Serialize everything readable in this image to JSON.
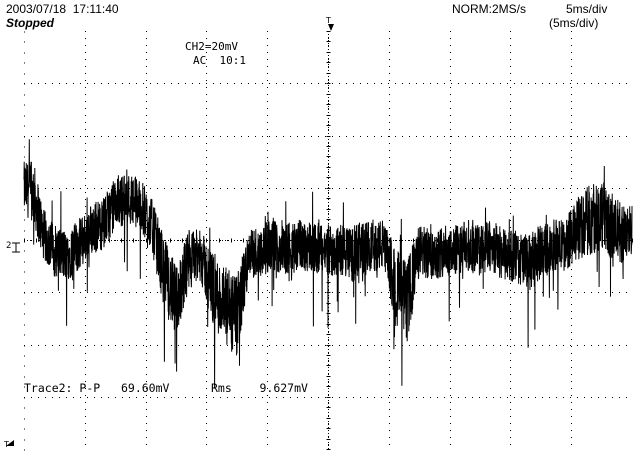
{
  "header": {
    "timestamp": "2003/07/18  17:11:40",
    "status": "Stopped",
    "acquisition_mode": "NORM:2MS/s",
    "timebase": "5ms/div",
    "timebase_sub": "(5ms/div)"
  },
  "channel": {
    "scale": "CH2=20mV",
    "coupling": "AC  10:1",
    "marker": "2"
  },
  "measurement": {
    "trace": "Trace2:",
    "pp_label": "P-P",
    "pp_value": "69.60mV",
    "rms_label": "Rms",
    "rms_value": "9.627mV"
  },
  "colors": {
    "trace": "#000000",
    "grid": "#000000",
    "background": "#ffffff"
  },
  "chart_data": {
    "type": "line",
    "grid": true,
    "x_divisions": 10,
    "y_divisions": 8,
    "x_unit_per_div": "5ms",
    "y_unit_per_div": "20mV",
    "xlim": [
      0,
      50
    ],
    "ylim": [
      -80,
      80
    ],
    "x": [
      0,
      0.8,
      1.6,
      2.5,
      3.5,
      4.5,
      5.5,
      6.5,
      7.5,
      8.5,
      9.5,
      10.5,
      11.5,
      12.5,
      13.5,
      14.5,
      15.5,
      16.5,
      17.5,
      18.5,
      19.5,
      20.5,
      21.5,
      22.5,
      23.5,
      24.5,
      25.5,
      26.5,
      27.5,
      28.5,
      29.5,
      30.5,
      31.5,
      32.5,
      33.5,
      34.5,
      35.5,
      36.5,
      37.5,
      38.5,
      39.5,
      40.5,
      41.5,
      42.5,
      43.5,
      44.5,
      45.5,
      46.5,
      47.5,
      48.5,
      49.5,
      50
    ],
    "y_mean": [
      20,
      18,
      2,
      -4,
      -6,
      -2,
      4,
      6,
      14,
      16,
      14,
      6,
      -12,
      -24,
      -8,
      -6,
      -18,
      -26,
      -30,
      -6,
      -4,
      -2,
      -4,
      -2,
      -2,
      -4,
      -4,
      -4,
      -6,
      -2,
      -2,
      -16,
      -24,
      -4,
      -6,
      -4,
      -4,
      -2,
      -4,
      -2,
      -6,
      -6,
      -10,
      -4,
      -2,
      -2,
      4,
      8,
      10,
      4,
      2,
      4
    ],
    "y_spread": [
      10,
      12,
      10,
      10,
      10,
      10,
      10,
      10,
      10,
      10,
      10,
      10,
      14,
      14,
      12,
      10,
      14,
      16,
      16,
      10,
      10,
      10,
      10,
      10,
      10,
      10,
      10,
      10,
      12,
      10,
      10,
      14,
      16,
      10,
      10,
      10,
      10,
      10,
      10,
      10,
      10,
      10,
      12,
      10,
      10,
      10,
      12,
      14,
      14,
      12,
      12,
      10
    ]
  }
}
